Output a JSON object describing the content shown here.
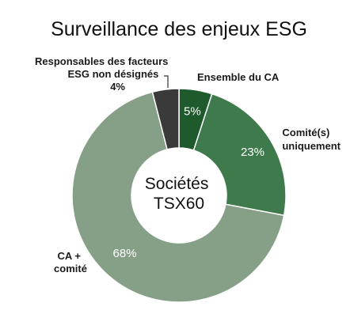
{
  "chart_data": {
    "type": "pie",
    "title": "Surveillance des enjeux ESG",
    "center_label": [
      "Sociétés",
      "TSX60"
    ],
    "slices": [
      {
        "label": "Ensemble du CA",
        "value": 5,
        "value_label": "5%",
        "color": "#1f5a2c"
      },
      {
        "label": "Comité(s) uniquement",
        "value": 23,
        "value_label": "23%",
        "color": "#3e7a4b"
      },
      {
        "label": "CA + comité",
        "value": 68,
        "value_label": "68%",
        "color": "#869f87"
      },
      {
        "label": "Responsables des facteurs ESG non désignés",
        "value": 4,
        "value_label": "4%",
        "color": "#3a3a3a"
      }
    ],
    "external_labels": {
      "ensemble": [
        "Ensemble du CA"
      ],
      "comite": [
        "Comité(s)",
        "uniquement"
      ],
      "ca_comite": [
        "CA +",
        "comité"
      ],
      "responsables": [
        "Responsables des facteurs",
        "ESG non désignés",
        "4%"
      ]
    }
  }
}
